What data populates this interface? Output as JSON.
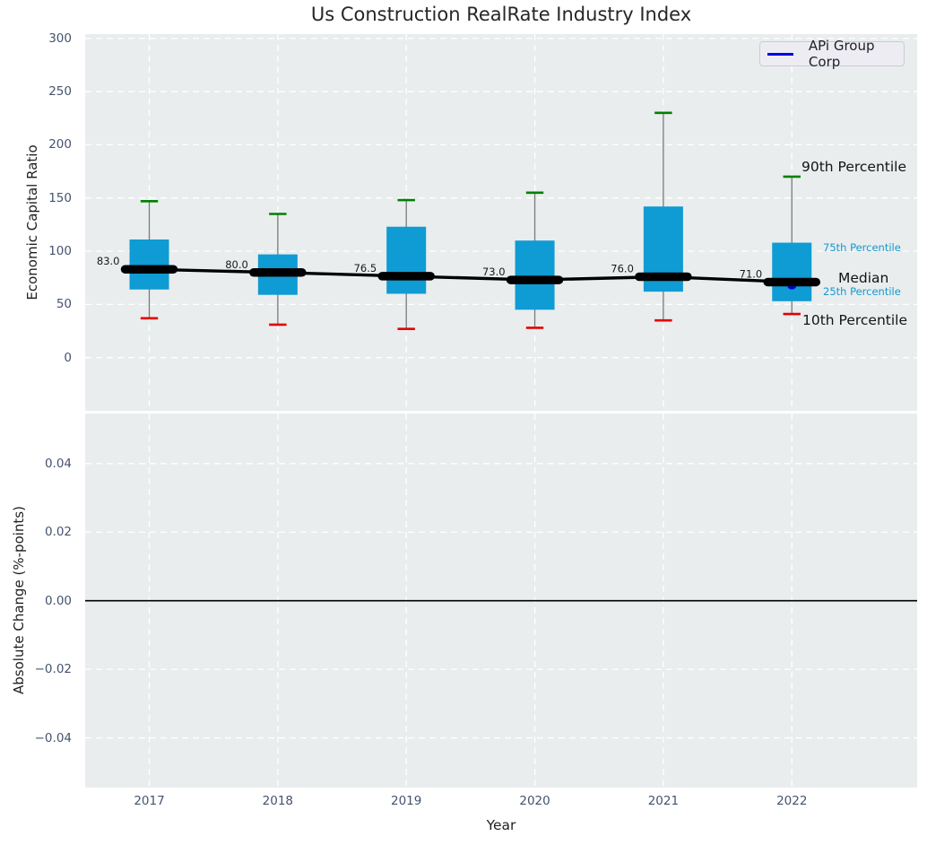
{
  "title": "Us Construction RealRate Industry Index",
  "legend": {
    "label": "APi Group Corp"
  },
  "annotations": {
    "p90": "90th Percentile",
    "p75": "75th Percentile",
    "median": "Median",
    "p25": "25th Percentile",
    "p10": "10th Percentile"
  },
  "colors": {
    "box": "#0f9bd3",
    "whisker": "#7a7a7a",
    "cap_high": "#008000",
    "cap_low": "#e50000",
    "median_line": "#000000",
    "company": "#0000dd",
    "legend_line": "#0000e6",
    "annotation_blue": "#1699cd",
    "panel_bg": "#e9edee",
    "grid": "#ffffff",
    "tick_text": "#44536e",
    "zero_line": "#000000",
    "value_label": "#1a1a1a"
  },
  "chart_data": {
    "type": "boxplot-timeseries",
    "title": "Us Construction RealRate Industry Index",
    "xlabel": "Year",
    "categories": [
      "2017",
      "2018",
      "2019",
      "2020",
      "2021",
      "2022"
    ],
    "legend_position": "upper right",
    "grid": true,
    "panels": [
      {
        "name": "economic-capital-ratio",
        "ylabel": "Economic Capital Ratio",
        "ylim": [
          -50,
          304
        ],
        "ytick_values": [
          0,
          50,
          100,
          150,
          200,
          250,
          300
        ],
        "ytick_labels": [
          "0",
          "50",
          "100",
          "150",
          "200",
          "250",
          "300"
        ],
        "boxes": [
          {
            "year": "2017",
            "p10": 37,
            "p25": 64,
            "median": 83.0,
            "p75": 111,
            "p90": 147,
            "median_label": "83.0"
          },
          {
            "year": "2018",
            "p10": 31,
            "p25": 59,
            "median": 80.0,
            "p75": 97,
            "p90": 135,
            "median_label": "80.0"
          },
          {
            "year": "2019",
            "p10": 27,
            "p25": 60,
            "median": 76.5,
            "p75": 123,
            "p90": 148,
            "median_label": "76.5"
          },
          {
            "year": "2020",
            "p10": 28,
            "p25": 45,
            "median": 73.0,
            "p75": 110,
            "p90": 155,
            "median_label": "73.0"
          },
          {
            "year": "2021",
            "p10": 35,
            "p25": 62,
            "median": 76.0,
            "p75": 142,
            "p90": 230,
            "median_label": "76.0"
          },
          {
            "year": "2022",
            "p10": 41,
            "p25": 53,
            "median": 71.0,
            "p75": 108,
            "p90": 170,
            "median_label": "71.0"
          }
        ],
        "company_series": {
          "name": "APi Group Corp",
          "points": [
            {
              "year": "2022",
              "value": 67
            }
          ]
        }
      },
      {
        "name": "absolute-change",
        "ylabel": "Absolute Change (%-points)",
        "ylim": [
          -0.0545,
          0.0546
        ],
        "ytick_values": [
          0.04,
          0.02,
          0.0,
          -0.02,
          -0.04
        ],
        "ytick_labels": [
          "0.04",
          "0.02",
          "0.00",
          "−0.02",
          "−0.04"
        ],
        "zero_line": true,
        "series": []
      }
    ]
  }
}
